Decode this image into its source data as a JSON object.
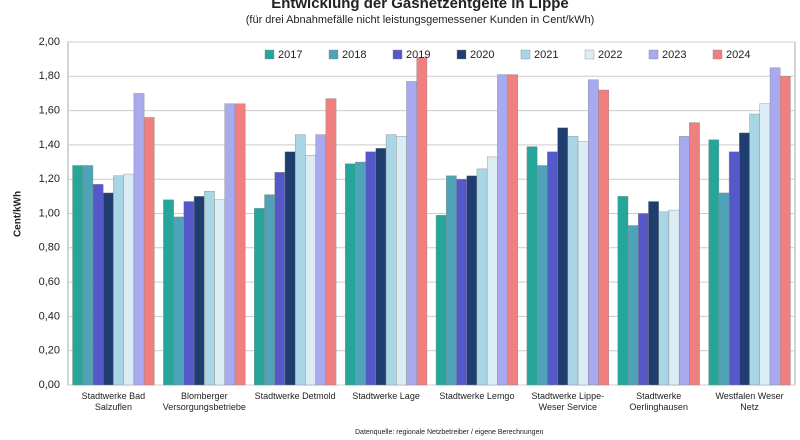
{
  "chart_data": {
    "type": "bar",
    "title": "Entwicklung der Gasnetzentgelte in Lippe",
    "subtitle": "(für drei Abnahmefälle nicht leistungsgemessener Kunden in Cent/kWh)",
    "y_label": "Cent/kWh",
    "source": "Datenquelle: regionale Netzbetreiber / eigene Berechnungen",
    "categories": [
      "Stadtwerke Bad Salzuflen",
      "Blomberger Versorgungsbetriebe",
      "Stadtwerke Detmold",
      "Stadtwerke Lage",
      "Stadtwerke Lemgo",
      "Stadtwerke Lippe-Weser Service",
      "Stadtwerke Oerlinghausen",
      "Westfalen Weser Netz"
    ],
    "series": [
      {
        "name": "2017",
        "color": "#26a69a",
        "values": [
          1.28,
          1.08,
          1.03,
          1.29,
          0.99,
          1.39,
          1.1,
          1.43
        ]
      },
      {
        "name": "2018",
        "color": "#4fa3b8",
        "values": [
          1.28,
          0.98,
          1.11,
          1.3,
          1.22,
          1.28,
          0.93,
          1.12
        ]
      },
      {
        "name": "2019",
        "color": "#5558c8",
        "values": [
          1.17,
          1.07,
          1.24,
          1.36,
          1.2,
          1.36,
          1.0,
          1.36
        ]
      },
      {
        "name": "2020",
        "color": "#1f3d6e",
        "values": [
          1.12,
          1.1,
          1.36,
          1.38,
          1.22,
          1.5,
          1.07,
          1.47
        ]
      },
      {
        "name": "2021",
        "color": "#a9d6e5",
        "values": [
          1.22,
          1.13,
          1.46,
          1.46,
          1.26,
          1.45,
          1.01,
          1.58
        ]
      },
      {
        "name": "2022",
        "color": "#dcecf5",
        "values": [
          1.23,
          1.08,
          1.34,
          1.45,
          1.33,
          1.42,
          1.02,
          1.64
        ]
      },
      {
        "name": "2023",
        "color": "#a9a9ef",
        "values": [
          1.7,
          1.64,
          1.46,
          1.77,
          1.81,
          1.78,
          1.45,
          1.85
        ]
      },
      {
        "name": "2024",
        "color": "#f08080",
        "values": [
          1.56,
          1.64,
          1.67,
          1.91,
          1.81,
          1.72,
          1.53,
          1.8
        ]
      }
    ],
    "ylim": [
      0,
      2
    ],
    "yticks": [
      {
        "value": 0,
        "label": "0,00"
      },
      {
        "value": 0.2,
        "label": "0,20"
      },
      {
        "value": 0.4,
        "label": "0,40"
      },
      {
        "value": 0.6,
        "label": "0,60"
      },
      {
        "value": 0.8,
        "label": "0,80"
      },
      {
        "value": 1,
        "label": "1,00"
      },
      {
        "value": 1.2,
        "label": "1,20"
      },
      {
        "value": 1.4,
        "label": "1,40"
      },
      {
        "value": 1.6,
        "label": "1,60"
      },
      {
        "value": 1.8,
        "label": "1,80"
      },
      {
        "value": 2,
        "label": "2,00"
      }
    ],
    "grid": true
  }
}
